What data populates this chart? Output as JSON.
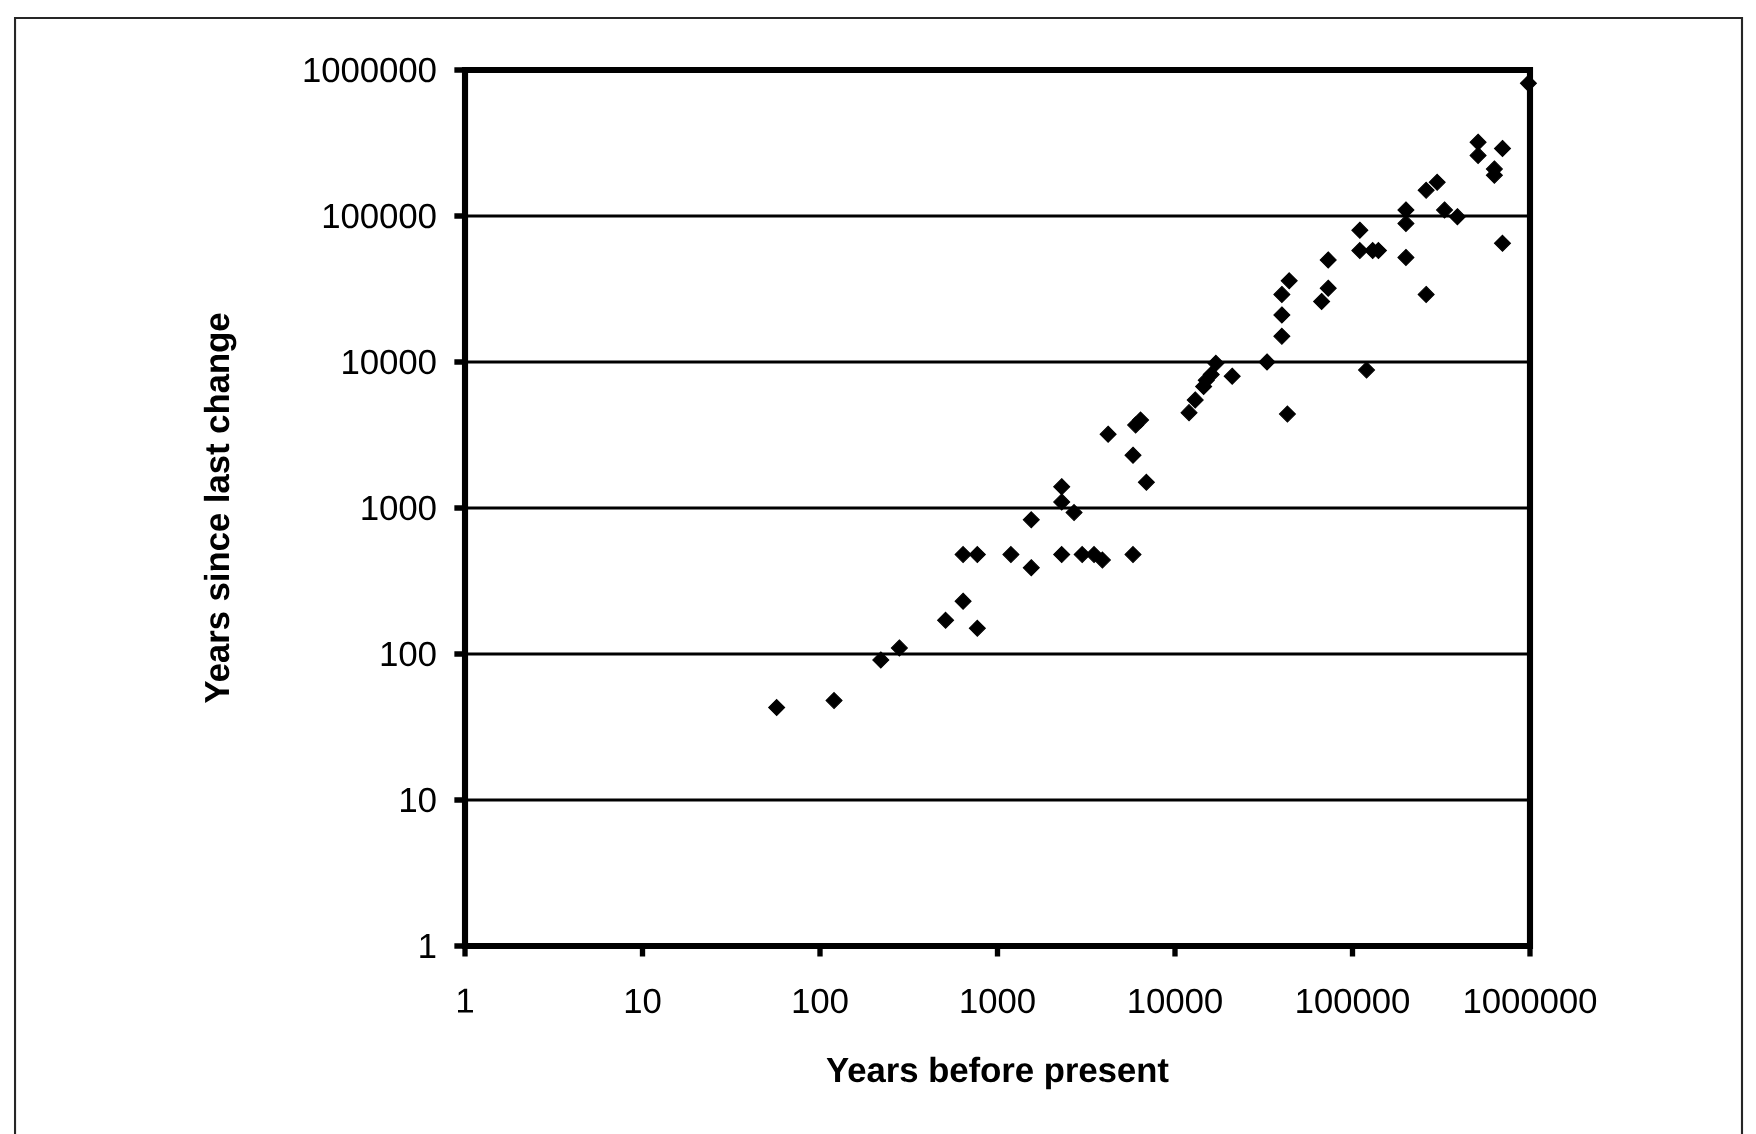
{
  "chart_data": {
    "type": "scatter",
    "xlabel": "Years before present",
    "ylabel": "Years since last change",
    "x": [
      57,
      120,
      220,
      280,
      510,
      640,
      770,
      640,
      770,
      1190,
      1550,
      1550,
      2300,
      2300,
      2700,
      2300,
      3000,
      3500,
      3900,
      5800,
      4200,
      6400,
      6000,
      5800,
      6900,
      12000,
      13000,
      14500,
      15000,
      16000,
      17000,
      21000,
      33000,
      43000,
      44000,
      40000,
      40000,
      40000,
      67000,
      73000,
      73000,
      110000,
      110000,
      130000,
      140000,
      120000,
      200000,
      200000,
      200000,
      260000,
      260000,
      300000,
      330000,
      390000,
      510000,
      510000,
      700000,
      630000,
      630000,
      700000,
      980000
    ],
    "values": [
      43,
      48,
      91,
      110,
      170,
      230,
      150,
      480,
      480,
      480,
      830,
      390,
      1400,
      1100,
      930,
      480,
      480,
      480,
      440,
      480,
      3200,
      4000,
      3700,
      2300,
      1500,
      4500,
      5500,
      6800,
      7500,
      8200,
      9800,
      8000,
      10000,
      4400,
      36000,
      29000,
      21000,
      15000,
      26000,
      32000,
      50000,
      80000,
      58000,
      58000,
      58000,
      8800,
      110000,
      89000,
      52000,
      29000,
      150000,
      170000,
      110000,
      99000,
      320000,
      260000,
      290000,
      210000,
      190000,
      65000,
      810000
    ],
    "color": "#000000",
    "marker": "diamond",
    "log": "xy",
    "grid": "y",
    "xlim": [
      1,
      1000000
    ],
    "ylim": [
      1,
      1000000
    ],
    "xticks": [
      1,
      10,
      100,
      1000,
      10000,
      100000,
      1000000
    ],
    "yticks": [
      1,
      10,
      100,
      1000,
      10000,
      100000,
      1000000
    ]
  }
}
